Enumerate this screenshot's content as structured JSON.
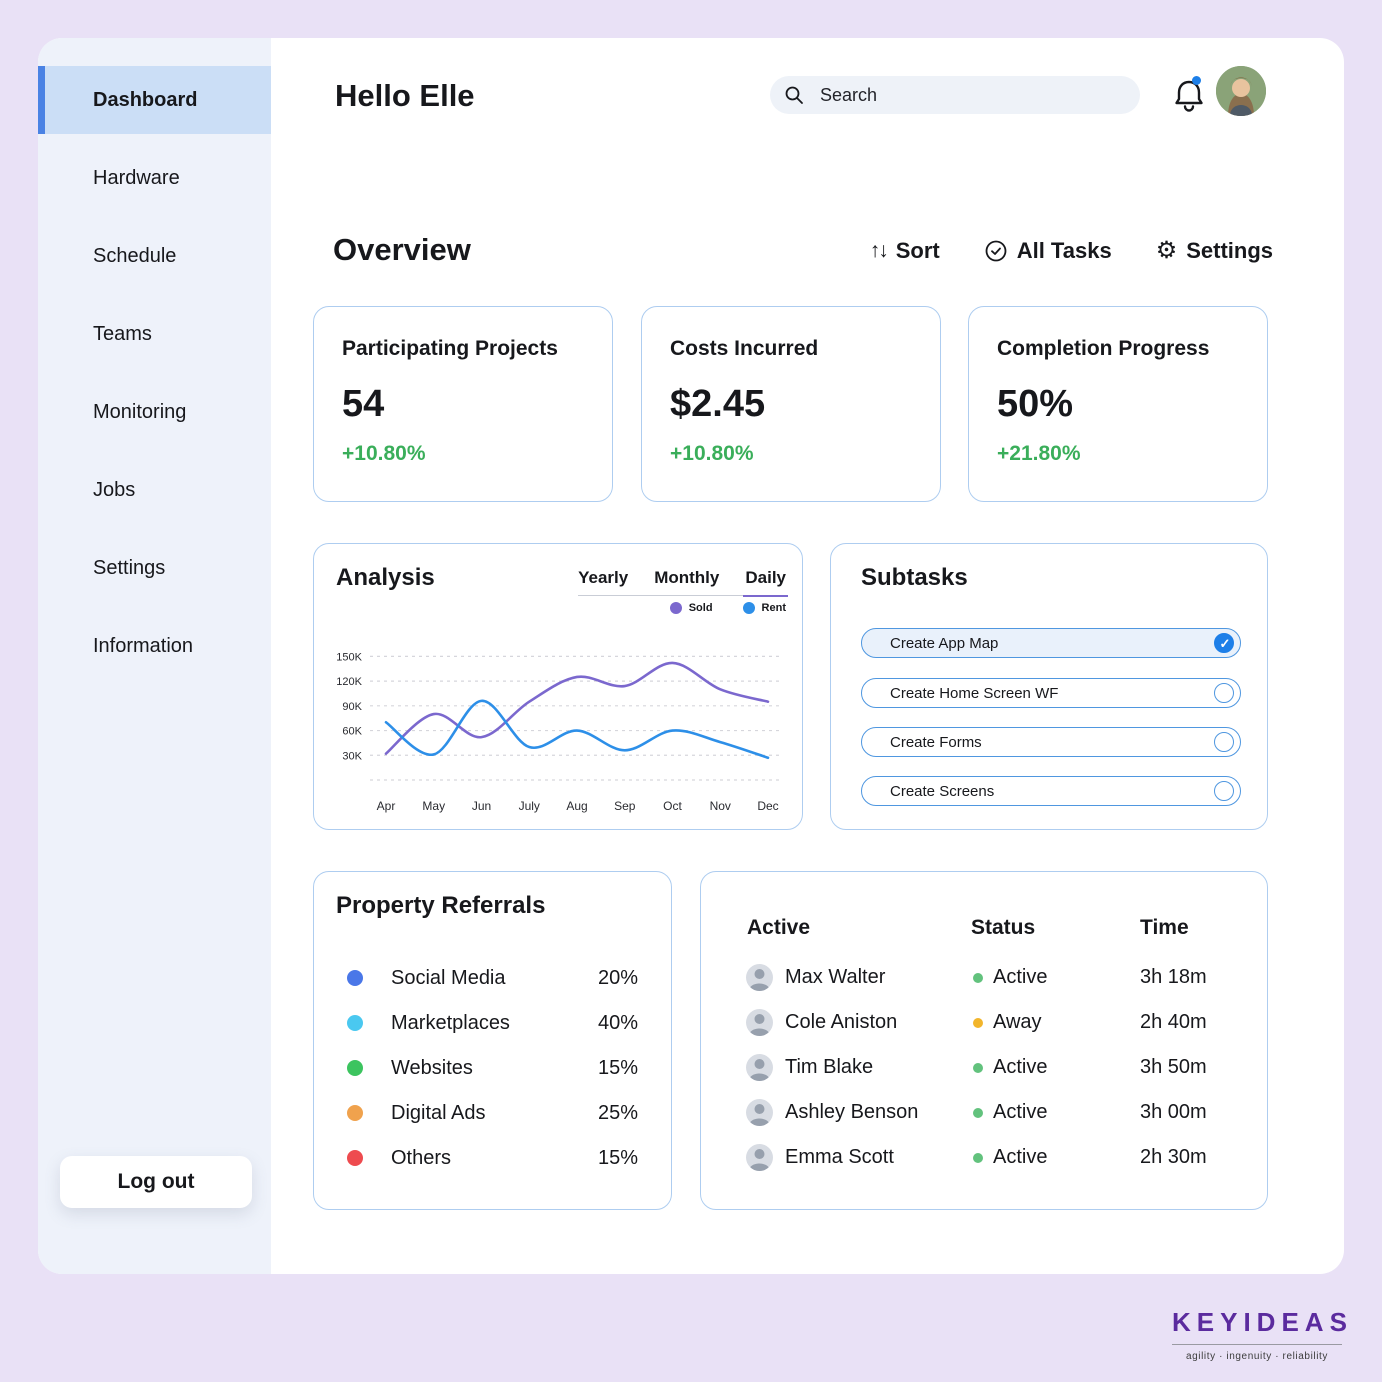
{
  "sidebar": {
    "items": [
      {
        "label": "Dashboard",
        "active": true
      },
      {
        "label": "Hardware",
        "active": false
      },
      {
        "label": "Schedule",
        "active": false
      },
      {
        "label": "Teams",
        "active": false
      },
      {
        "label": "Monitoring",
        "active": false
      },
      {
        "label": "Jobs",
        "active": false
      },
      {
        "label": "Settings",
        "active": false
      },
      {
        "label": "Information",
        "active": false
      }
    ],
    "logout_label": "Log out"
  },
  "header": {
    "greeting": "Hello Elle",
    "search_placeholder": "Search",
    "bell_has_notification": true
  },
  "overview": {
    "title": "Overview",
    "controls": [
      {
        "label": "Sort",
        "icon": "sort-arrows"
      },
      {
        "label": "All Tasks",
        "icon": "circle-check"
      },
      {
        "label": "Settings",
        "icon": "gear"
      }
    ],
    "sort_glyph": "↑↓",
    "gear_glyph": "⚙"
  },
  "stats": [
    {
      "title": "Participating Projects",
      "value": "54",
      "delta": "+10.80%"
    },
    {
      "title": "Costs Incurred",
      "value": "$2.45",
      "delta": "+10.80%"
    },
    {
      "title": "Completion Progress",
      "value": "50%",
      "delta": "+21.80%"
    }
  ],
  "analysis": {
    "title": "Analysis",
    "tabs": [
      "Yearly",
      "Monthly",
      "Daily"
    ],
    "active_tab": "Daily"
  },
  "chart_data": {
    "type": "line",
    "title": "Analysis",
    "x": [
      "Apr",
      "May",
      "Jun",
      "July",
      "Aug",
      "Sep",
      "Oct",
      "Nov",
      "Dec"
    ],
    "series": [
      {
        "name": "Sold",
        "color": "#7b68ce",
        "values": [
          32,
          80,
          52,
          95,
          125,
          114,
          142,
          110,
          95
        ]
      },
      {
        "name": "Rent",
        "color": "#2d8fe8",
        "values": [
          70,
          31,
          96,
          40,
          60,
          36,
          60,
          46,
          27
        ]
      }
    ],
    "grid_values": [
      150,
      120,
      90,
      60,
      30,
      0
    ],
    "ytick_suffix": "K",
    "ylim": [
      0,
      165
    ],
    "grid": "dashed-horizontal",
    "legend_position": "top-right"
  },
  "subtasks": {
    "title": "Subtasks",
    "items": [
      {
        "label": "Create App Map",
        "checked": true
      },
      {
        "label": "Create Home Screen WF",
        "checked": false
      },
      {
        "label": "Create Forms",
        "checked": false
      },
      {
        "label": "Create Screens",
        "checked": false
      }
    ]
  },
  "referrals": {
    "title": "Property Referrals",
    "items": [
      {
        "label": "Social Media",
        "value": "20%",
        "color": "#4a77e8"
      },
      {
        "label": "Marketplaces",
        "value": "40%",
        "color": "#4ac8f0"
      },
      {
        "label": "Websites",
        "value": "15%",
        "color": "#3cc45f"
      },
      {
        "label": "Digital Ads",
        "value": "25%",
        "color": "#f0a24d"
      },
      {
        "label": "Others",
        "value": "15%",
        "color": "#ee4b4f"
      }
    ]
  },
  "team": {
    "headers": [
      "Active",
      "Status",
      "Time"
    ],
    "rows": [
      {
        "name": "Max Walter",
        "status": "Active",
        "status_color": "#62c27d",
        "time": "3h 18m"
      },
      {
        "name": "Cole Aniston",
        "status": "Away",
        "status_color": "#f2b52b",
        "time": "2h 40m"
      },
      {
        "name": "Tim Blake",
        "status": "Active",
        "status_color": "#62c27d",
        "time": "3h 50m"
      },
      {
        "name": "Ashley Benson",
        "status": "Active",
        "status_color": "#62c27d",
        "time": "3h 00m"
      },
      {
        "name": "Emma Scott",
        "status": "Active",
        "status_color": "#62c27d",
        "time": "2h 30m"
      }
    ]
  },
  "brand": {
    "logo": "KEYIDEAS",
    "tagline": "agility · ingenuity · reliability",
    "color": "#5b2b9e"
  },
  "colors": {
    "page_background": "#e9e1f6",
    "sidebar_background": "#eef2fa",
    "active_item_background": "#cbdef6",
    "accent_blue": "#4a82e4",
    "card_border": "#aecdf0",
    "positive_green": "#3aae5a",
    "tab_underline_purple": "#7b68ce",
    "checked_blue": "#1d7fe8"
  }
}
